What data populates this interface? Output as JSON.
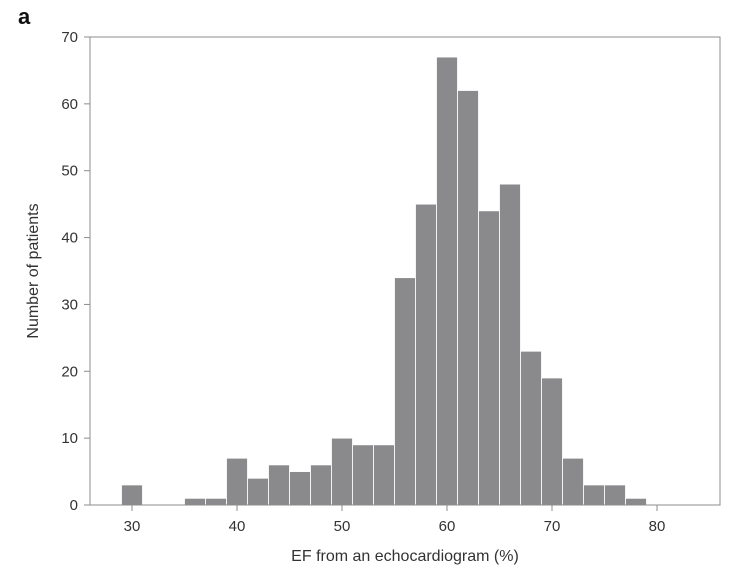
{
  "panel_label": "a",
  "chart_data": {
    "type": "bar",
    "histogram": true,
    "bin_width": 2,
    "bins": [
      {
        "start": 29,
        "end": 31,
        "value": 3
      },
      {
        "start": 31,
        "end": 33,
        "value": 0
      },
      {
        "start": 33,
        "end": 35,
        "value": 0
      },
      {
        "start": 35,
        "end": 37,
        "value": 1
      },
      {
        "start": 37,
        "end": 39,
        "value": 1
      },
      {
        "start": 39,
        "end": 41,
        "value": 7
      },
      {
        "start": 41,
        "end": 43,
        "value": 4
      },
      {
        "start": 43,
        "end": 45,
        "value": 6
      },
      {
        "start": 45,
        "end": 47,
        "value": 5
      },
      {
        "start": 47,
        "end": 49,
        "value": 6
      },
      {
        "start": 49,
        "end": 51,
        "value": 10
      },
      {
        "start": 51,
        "end": 53,
        "value": 9
      },
      {
        "start": 53,
        "end": 55,
        "value": 9
      },
      {
        "start": 55,
        "end": 57,
        "value": 34
      },
      {
        "start": 57,
        "end": 59,
        "value": 45
      },
      {
        "start": 59,
        "end": 61,
        "value": 67
      },
      {
        "start": 61,
        "end": 63,
        "value": 62
      },
      {
        "start": 63,
        "end": 65,
        "value": 44
      },
      {
        "start": 65,
        "end": 67,
        "value": 48
      },
      {
        "start": 67,
        "end": 69,
        "value": 23
      },
      {
        "start": 69,
        "end": 71,
        "value": 19
      },
      {
        "start": 71,
        "end": 73,
        "value": 7
      },
      {
        "start": 73,
        "end": 75,
        "value": 3
      },
      {
        "start": 75,
        "end": 77,
        "value": 3
      },
      {
        "start": 77,
        "end": 79,
        "value": 1
      }
    ],
    "xlabel": "EF from an echocardiogram (%)",
    "ylabel": "Number of patients",
    "xlim": [
      26,
      86
    ],
    "ylim": [
      0,
      70
    ],
    "xticks": [
      30,
      40,
      50,
      60,
      70,
      80
    ],
    "yticks": [
      0,
      10,
      20,
      30,
      40,
      50,
      60,
      70
    ],
    "grid": false,
    "bar_color": "#8a8a8c",
    "bar_edge_color": "#ffffff",
    "axis_color": "#8c8c8c"
  }
}
